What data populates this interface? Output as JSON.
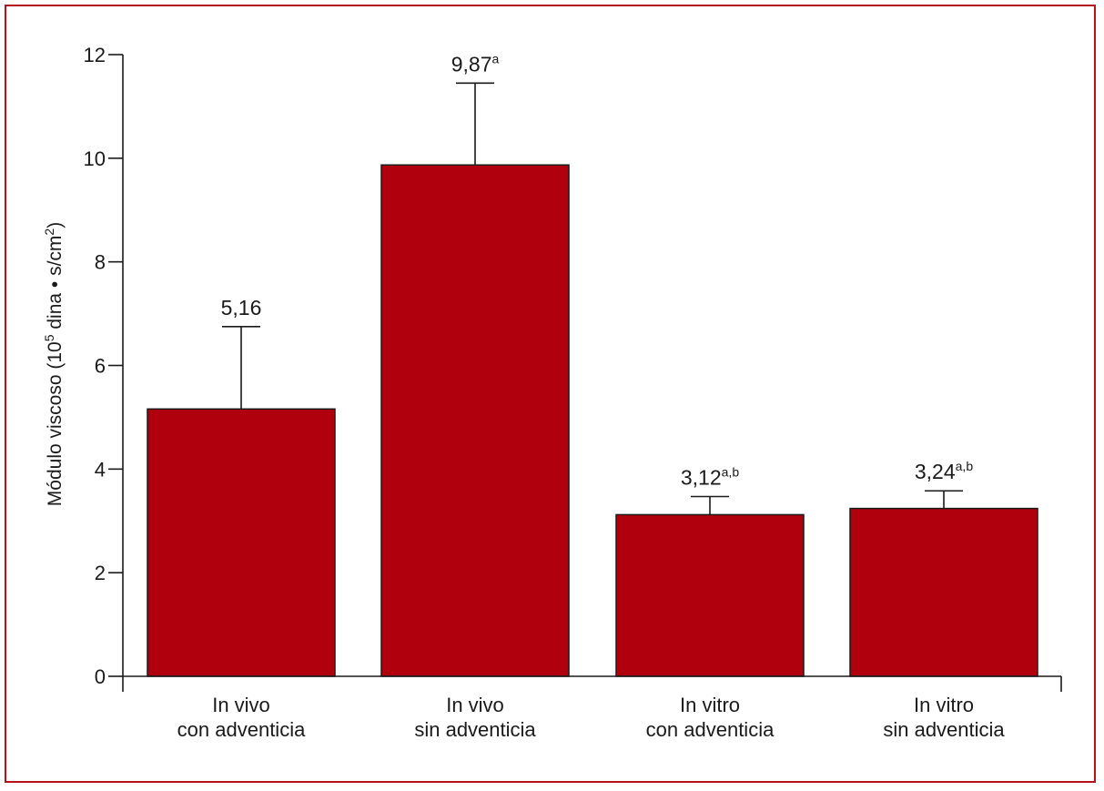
{
  "chart_data": {
    "type": "bar",
    "categories": [
      [
        "In vivo",
        "con adventicia"
      ],
      [
        "In vivo",
        "sin adventicia"
      ],
      [
        "In vitro",
        "con adventicia"
      ],
      [
        "In vitro",
        "sin adventicia"
      ]
    ],
    "values": [
      5.16,
      9.87,
      3.12,
      3.24
    ],
    "error_upper": [
      6.75,
      11.45,
      3.47,
      3.58
    ],
    "data_labels": [
      {
        "text": "5,16",
        "sup": ""
      },
      {
        "text": "9,87",
        "sup": "a"
      },
      {
        "text": "3,12",
        "sup": "a,b"
      },
      {
        "text": "3,24",
        "sup": "a,b"
      }
    ],
    "ylabel": {
      "prefix": "Módulo viscoso (10",
      "sup1": "5",
      "middle": " dina • s/cm",
      "sup2": "2",
      "suffix": ")"
    },
    "ylim": [
      0,
      12
    ],
    "yticks": [
      0,
      2,
      4,
      6,
      8,
      10,
      12
    ],
    "grid": false,
    "bar_color": "#b0000d",
    "frame_color": "#b5121b"
  }
}
